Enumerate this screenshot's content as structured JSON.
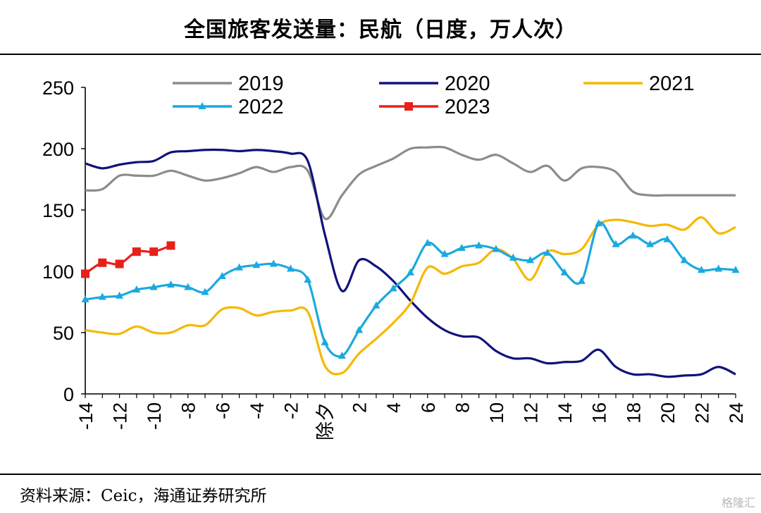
{
  "title": "全国旅客发送量：民航（日度，万人次）",
  "source": "资料来源：Ceic，海通证券研究所",
  "watermark": "格隆汇",
  "chart_data": {
    "type": "line",
    "xlabel": "",
    "ylabel": "",
    "ylim": [
      0,
      250
    ],
    "yticks": [
      0,
      50,
      100,
      150,
      200,
      250
    ],
    "xlim": [
      -14,
      24
    ],
    "xticks": [
      -14,
      -12,
      -10,
      -8,
      -6,
      -4,
      -2,
      0,
      2,
      4,
      6,
      8,
      10,
      12,
      14,
      16,
      18,
      20,
      22,
      24
    ],
    "xtick_labels": [
      "-14",
      "-12",
      "-10",
      "-8",
      "-6",
      "-4",
      "-2",
      "除夕",
      "2",
      "4",
      "6",
      "8",
      "10",
      "12",
      "14",
      "16",
      "18",
      "20",
      "22",
      "24"
    ],
    "grid": false,
    "legend": "top",
    "series": [
      {
        "name": "2019",
        "color": "#8c8c8c",
        "marker": "none",
        "x": [
          -14,
          -13,
          -12,
          -11,
          -10,
          -9,
          -8,
          -7,
          -6,
          -5,
          -4,
          -3,
          -2,
          -1,
          0,
          1,
          2,
          3,
          4,
          5,
          6,
          7,
          8,
          9,
          10,
          11,
          12,
          13,
          14,
          15,
          16,
          17,
          18,
          19,
          20,
          21,
          22,
          23,
          24
        ],
        "values": [
          166,
          167,
          178,
          178,
          178,
          182,
          178,
          174,
          176,
          180,
          185,
          181,
          185,
          182,
          143,
          162,
          179,
          186,
          192,
          200,
          201,
          201,
          195,
          191,
          195,
          188,
          181,
          186,
          174,
          184,
          185,
          181,
          165,
          162,
          162,
          162,
          162,
          162,
          162
        ]
      },
      {
        "name": "2020",
        "color": "#10137a",
        "marker": "none",
        "x": [
          -14,
          -13,
          -12,
          -11,
          -10,
          -9,
          -8,
          -7,
          -6,
          -5,
          -4,
          -3,
          -2,
          -1,
          0,
          1,
          2,
          3,
          4,
          5,
          6,
          7,
          8,
          9,
          10,
          11,
          12,
          13,
          14,
          15,
          16,
          17,
          18,
          19,
          20,
          21,
          22,
          23,
          24
        ],
        "values": [
          188,
          184,
          187,
          189,
          190,
          197,
          198,
          199,
          199,
          198,
          199,
          198,
          196,
          190,
          130,
          84,
          109,
          104,
          92,
          76,
          62,
          52,
          47,
          46,
          35,
          29,
          29,
          25,
          26,
          27,
          36,
          22,
          16,
          16,
          14,
          15,
          16,
          22,
          16
        ]
      },
      {
        "name": "2021",
        "color": "#f5b800",
        "marker": "none",
        "x": [
          -14,
          -13,
          -12,
          -11,
          -10,
          -9,
          -8,
          -7,
          -6,
          -5,
          -4,
          -3,
          -2,
          -1,
          0,
          1,
          2,
          3,
          4,
          5,
          6,
          7,
          8,
          9,
          10,
          11,
          12,
          13,
          14,
          15,
          16,
          17,
          18,
          19,
          20,
          21,
          22,
          23,
          24
        ],
        "values": [
          52,
          50,
          49,
          55,
          50,
          50,
          56,
          56,
          69,
          70,
          64,
          67,
          68,
          67,
          23,
          17,
          33,
          45,
          58,
          74,
          103,
          98,
          104,
          107,
          118,
          110,
          93,
          116,
          114,
          118,
          138,
          142,
          140,
          137,
          138,
          134,
          144,
          131,
          136
        ]
      },
      {
        "name": "2022",
        "color": "#1aa9e0",
        "marker": "triangle",
        "x": [
          -14,
          -13,
          -12,
          -11,
          -10,
          -9,
          -8,
          -7,
          -6,
          -5,
          -4,
          -3,
          -2,
          -1,
          0,
          1,
          2,
          3,
          4,
          5,
          6,
          7,
          8,
          9,
          10,
          11,
          12,
          13,
          14,
          15,
          16,
          17,
          18,
          19,
          20,
          21,
          22,
          23,
          24
        ],
        "values": [
          77,
          79,
          80,
          85,
          87,
          89,
          87,
          83,
          96,
          103,
          105,
          106,
          102,
          93,
          42,
          31,
          52,
          72,
          86,
          99,
          123,
          114,
          119,
          121,
          118,
          111,
          109,
          115,
          99,
          92,
          139,
          122,
          129,
          122,
          126,
          109,
          101,
          102,
          101
        ]
      },
      {
        "name": "2023",
        "color": "#e8201a",
        "marker": "square",
        "x": [
          -14,
          -13,
          -12,
          -11,
          -10,
          -9
        ],
        "values": [
          98,
          107,
          106,
          116,
          116,
          121
        ]
      }
    ]
  }
}
